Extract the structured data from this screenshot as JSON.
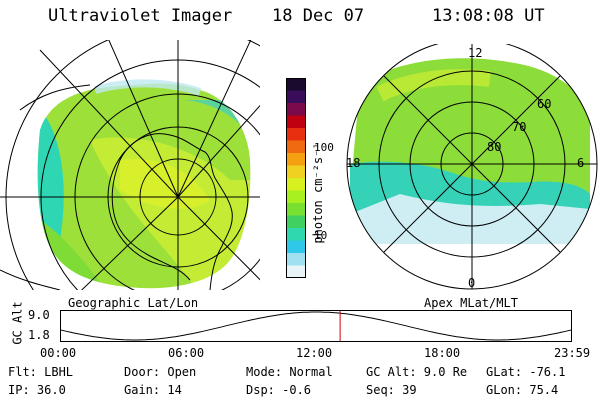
{
  "header": {
    "title": "Ultraviolet Imager",
    "date": "18 Dec 07",
    "time": "13:08:08 UT"
  },
  "geo_map": {
    "caption": "Geographic Lat/Lon"
  },
  "apex_map": {
    "caption": "Apex MLat/MLT",
    "mlt_labels": {
      "top": "12",
      "left": "18",
      "right": "6",
      "bottom": "0"
    },
    "lat_labels": [
      "60",
      "70",
      "80"
    ]
  },
  "colorbar": {
    "unit_label": "photon cm⁻²s⁻¹",
    "ticks": [
      "100",
      "10"
    ],
    "colors": [
      "#1a0a2e",
      "#3a0d5a",
      "#7a0a4a",
      "#c00010",
      "#e83010",
      "#f06a10",
      "#f4a010",
      "#f0d020",
      "#d8f020",
      "#a8f020",
      "#78e030",
      "#40d060",
      "#30d8b0",
      "#30c8e8",
      "#a0e0f0",
      "#e8f4f8"
    ]
  },
  "altitude_plot": {
    "ylabel": "GC Alt",
    "ymax": "9.0",
    "ymin": "1.8",
    "x_ticks": [
      "00:00",
      "06:00",
      "12:00",
      "18:00",
      "23:59"
    ],
    "current_time_hours": 13.13
  },
  "status": {
    "flt": "Flt: LBHL",
    "ip": "IP: 36.0",
    "door": "Door: Open",
    "gain": "Gain: 14",
    "mode": "Mode: Normal",
    "dsp": "Dsp:    -0.6",
    "gcalt": "GC Alt: 9.0 Re",
    "seq": "Seq: 39",
    "glat": "GLat: -76.1",
    "glon": "GLon:  75.4"
  }
}
